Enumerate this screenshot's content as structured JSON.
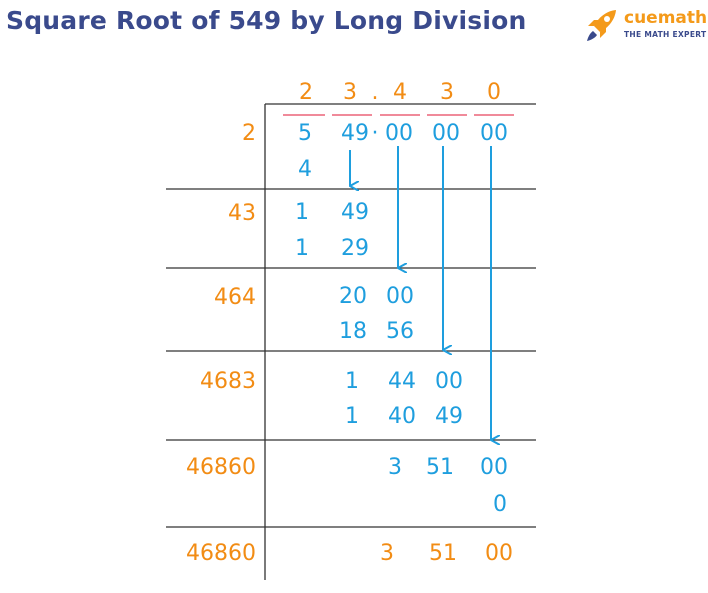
{
  "title": "Square Root of 549 by Long Division",
  "logo": {
    "brand_cue": "cue",
    "brand_math": "math",
    "tagline": "THE MATH EXPERT",
    "icon": "rocket-icon",
    "colors": {
      "brand": "#f49a1a",
      "tagline": "#3a4a8c"
    }
  },
  "colors": {
    "divisor": "#f28c14",
    "quotient": "#f28c14",
    "work": "#1e9ede",
    "bar": "#f08a9a",
    "title": "#3a4a8c"
  },
  "quotient": [
    "2",
    "3",
    ".",
    "4",
    "3",
    "0"
  ],
  "dividend": [
    "5",
    "49",
    "·",
    "00",
    "00",
    "00"
  ],
  "divisors": [
    "2",
    "43",
    "464",
    "4683",
    "46860",
    "46860"
  ],
  "rows": [
    {
      "sub": "4"
    },
    {
      "top": [
        "1",
        "49"
      ],
      "sub": [
        "1",
        "29"
      ]
    },
    {
      "top": [
        "20",
        "00"
      ],
      "sub": [
        "18",
        "56"
      ]
    },
    {
      "top": [
        "1",
        "44",
        "00"
      ],
      "sub": [
        "1",
        "40",
        "49"
      ]
    },
    {
      "top": [
        "3",
        "51",
        "00"
      ],
      "sub": "0"
    },
    {
      "remainder": [
        "3",
        "51",
        "00"
      ]
    }
  ]
}
